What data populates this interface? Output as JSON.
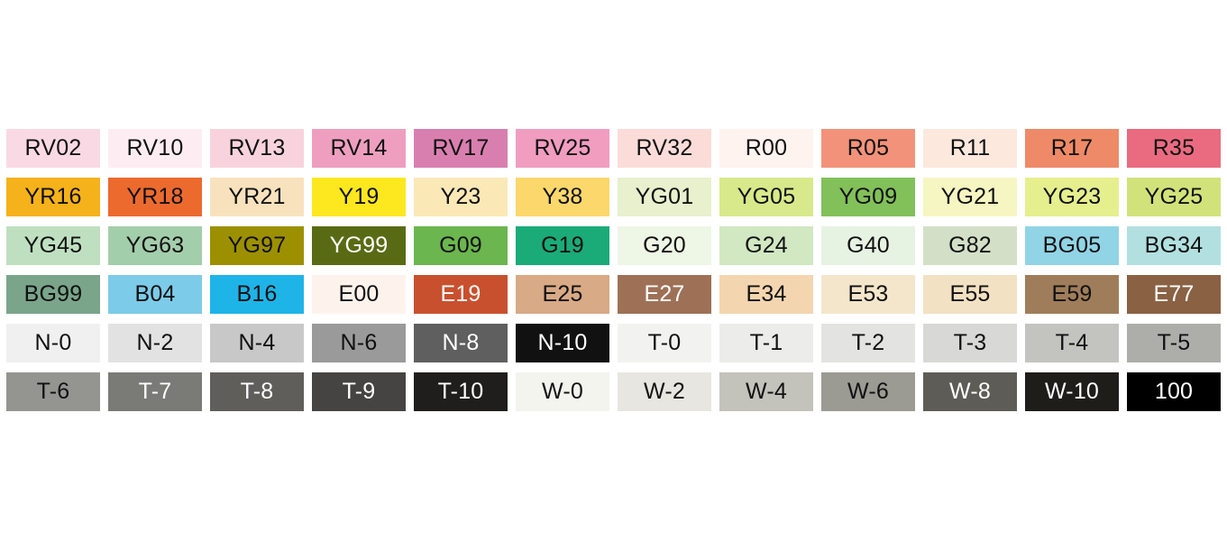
{
  "swatches": [
    {
      "code": "RV02",
      "color": "#f9d9e4",
      "text": "#111111"
    },
    {
      "code": "RV10",
      "color": "#fdedf2",
      "text": "#111111"
    },
    {
      "code": "RV13",
      "color": "#f8d3de",
      "text": "#111111"
    },
    {
      "code": "RV14",
      "color": "#ee9fbf",
      "text": "#111111"
    },
    {
      "code": "RV17",
      "color": "#d97fb0",
      "text": "#111111"
    },
    {
      "code": "RV25",
      "color": "#f09dc0",
      "text": "#111111"
    },
    {
      "code": "RV32",
      "color": "#fbdcd8",
      "text": "#111111"
    },
    {
      "code": "R00",
      "color": "#fff3ef",
      "text": "#111111"
    },
    {
      "code": "R05",
      "color": "#f2927a",
      "text": "#111111"
    },
    {
      "code": "R11",
      "color": "#fde8de",
      "text": "#111111"
    },
    {
      "code": "R17",
      "color": "#ee8a67",
      "text": "#111111"
    },
    {
      "code": "R35",
      "color": "#ea6b80",
      "text": "#111111"
    },
    {
      "code": "YR16",
      "color": "#f6b21b",
      "text": "#111111"
    },
    {
      "code": "YR18",
      "color": "#ec6a2e",
      "text": "#111111"
    },
    {
      "code": "YR21",
      "color": "#f8e2bd",
      "text": "#111111"
    },
    {
      "code": "Y19",
      "color": "#fde81f",
      "text": "#111111"
    },
    {
      "code": "Y23",
      "color": "#fbe8b7",
      "text": "#111111"
    },
    {
      "code": "Y38",
      "color": "#fcd86c",
      "text": "#111111"
    },
    {
      "code": "YG01",
      "color": "#e8f0cd",
      "text": "#111111"
    },
    {
      "code": "YG05",
      "color": "#d7e98a",
      "text": "#111111"
    },
    {
      "code": "YG09",
      "color": "#82c05a",
      "text": "#111111"
    },
    {
      "code": "YG21",
      "color": "#f6f6c2",
      "text": "#111111"
    },
    {
      "code": "YG23",
      "color": "#e6ef8e",
      "text": "#111111"
    },
    {
      "code": "YG25",
      "color": "#d2e27b",
      "text": "#111111"
    },
    {
      "code": "YG45",
      "color": "#bfe0c0",
      "text": "#111111"
    },
    {
      "code": "YG63",
      "color": "#a3ceab",
      "text": "#111111"
    },
    {
      "code": "YG97",
      "color": "#9c9000",
      "text": "#111111"
    },
    {
      "code": "YG99",
      "color": "#586b14",
      "text": "#ffffff"
    },
    {
      "code": "G09",
      "color": "#6bb64f",
      "text": "#111111"
    },
    {
      "code": "G19",
      "color": "#1bab78",
      "text": "#111111"
    },
    {
      "code": "G20",
      "color": "#eef6e6",
      "text": "#111111"
    },
    {
      "code": "G24",
      "color": "#d1e8c2",
      "text": "#111111"
    },
    {
      "code": "G40",
      "color": "#e7f3e2",
      "text": "#111111"
    },
    {
      "code": "G82",
      "color": "#d3e0c7",
      "text": "#111111"
    },
    {
      "code": "BG05",
      "color": "#91d4e6",
      "text": "#111111"
    },
    {
      "code": "BG34",
      "color": "#b2e0e0",
      "text": "#111111"
    },
    {
      "code": "BG99",
      "color": "#7aa58b",
      "text": "#111111"
    },
    {
      "code": "B04",
      "color": "#7ccbe9",
      "text": "#111111"
    },
    {
      "code": "B16",
      "color": "#1eb4e8",
      "text": "#111111"
    },
    {
      "code": "E00",
      "color": "#fef3ec",
      "text": "#111111"
    },
    {
      "code": "E19",
      "color": "#c8502e",
      "text": "#ffffff"
    },
    {
      "code": "E25",
      "color": "#d8aa85",
      "text": "#111111"
    },
    {
      "code": "E27",
      "color": "#9e7157",
      "text": "#ffffff"
    },
    {
      "code": "E34",
      "color": "#f3d5b0",
      "text": "#111111"
    },
    {
      "code": "E53",
      "color": "#f4e6cb",
      "text": "#111111"
    },
    {
      "code": "E55",
      "color": "#f3e1c3",
      "text": "#111111"
    },
    {
      "code": "E59",
      "color": "#9f7d5a",
      "text": "#111111"
    },
    {
      "code": "E77",
      "color": "#8a6143",
      "text": "#ffffff"
    },
    {
      "code": "N-0",
      "color": "#f0f0f0",
      "text": "#111111"
    },
    {
      "code": "N-2",
      "color": "#e2e2e2",
      "text": "#111111"
    },
    {
      "code": "N-4",
      "color": "#c8c8c8",
      "text": "#111111"
    },
    {
      "code": "N-6",
      "color": "#9a9a9a",
      "text": "#111111"
    },
    {
      "code": "N-8",
      "color": "#5f5f5f",
      "text": "#ffffff"
    },
    {
      "code": "N-10",
      "color": "#111111",
      "text": "#ffffff"
    },
    {
      "code": "T-0",
      "color": "#f2f2f1",
      "text": "#111111"
    },
    {
      "code": "T-1",
      "color": "#ececea",
      "text": "#111111"
    },
    {
      "code": "T-2",
      "color": "#e3e3e1",
      "text": "#111111"
    },
    {
      "code": "T-3",
      "color": "#d8d8d6",
      "text": "#111111"
    },
    {
      "code": "T-4",
      "color": "#c3c3c0",
      "text": "#111111"
    },
    {
      "code": "T-5",
      "color": "#adadaa",
      "text": "#111111"
    },
    {
      "code": "T-6",
      "color": "#949491",
      "text": "#111111"
    },
    {
      "code": "T-7",
      "color": "#7a7a77",
      "text": "#ffffff"
    },
    {
      "code": "T-8",
      "color": "#5f5e5b",
      "text": "#ffffff"
    },
    {
      "code": "T-9",
      "color": "#464442",
      "text": "#ffffff"
    },
    {
      "code": "T-10",
      "color": "#1f1e1c",
      "text": "#ffffff"
    },
    {
      "code": "W-0",
      "color": "#f4f4ef",
      "text": "#111111"
    },
    {
      "code": "W-2",
      "color": "#e7e6e0",
      "text": "#111111"
    },
    {
      "code": "W-4",
      "color": "#c3c2bb",
      "text": "#111111"
    },
    {
      "code": "W-6",
      "color": "#9b9a93",
      "text": "#111111"
    },
    {
      "code": "W-8",
      "color": "#5d5c57",
      "text": "#ffffff"
    },
    {
      "code": "W-10",
      "color": "#1e1d1a",
      "text": "#ffffff"
    },
    {
      "code": "100",
      "color": "#000000",
      "text": "#ffffff"
    }
  ]
}
